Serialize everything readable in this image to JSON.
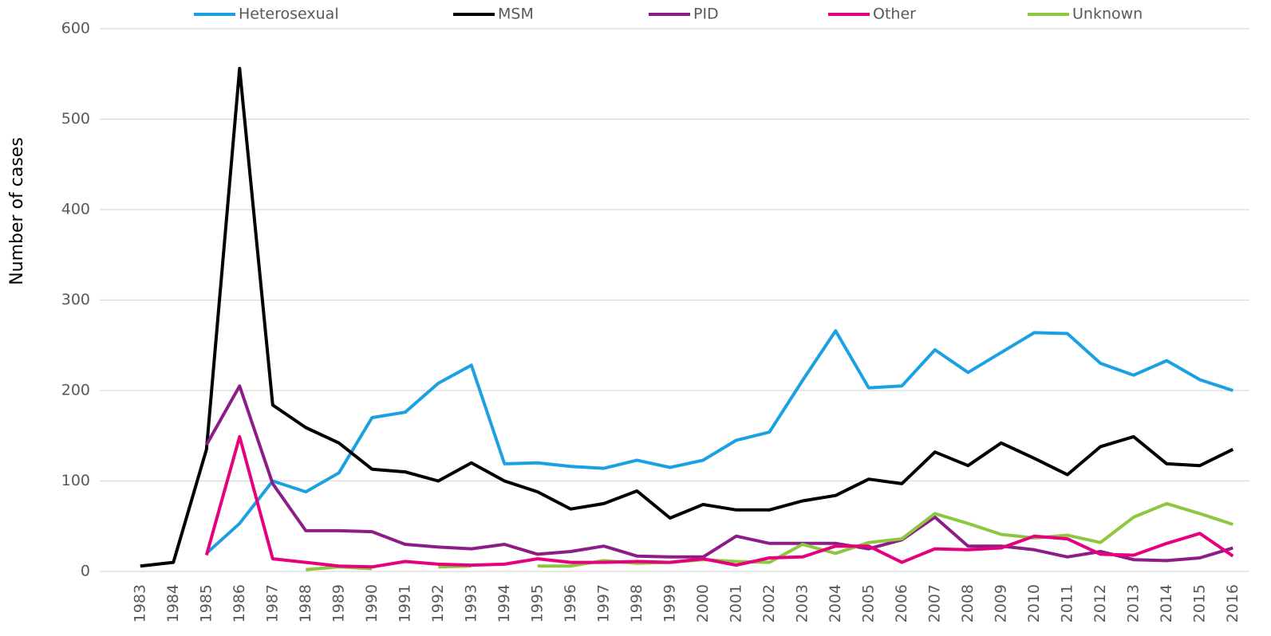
{
  "chart_data": {
    "type": "line",
    "y_label": "Number of cases",
    "categories": [
      "1983",
      "1984",
      "1985",
      "1986",
      "1987",
      "1988",
      "1989",
      "1990",
      "1991",
      "1992",
      "1993",
      "1994",
      "1995",
      "1996",
      "1997",
      "1998",
      "1999",
      "2000",
      "2001",
      "2002",
      "2003",
      "2004",
      "2005",
      "2006",
      "2007",
      "2008",
      "2009",
      "2010",
      "2011",
      "2012",
      "2013",
      "2014",
      "2015",
      "2016"
    ],
    "series": [
      {
        "name": "Heterosexual",
        "color": "#1ba1e2",
        "values": [
          null,
          null,
          20,
          53,
          100,
          88,
          109,
          170,
          176,
          208,
          228,
          119,
          120,
          116,
          114,
          123,
          115,
          123,
          145,
          154,
          211,
          266,
          203,
          205,
          245,
          220,
          242,
          264,
          263,
          230,
          217,
          233,
          212,
          200
        ]
      },
      {
        "name": "MSM",
        "color": "#000000",
        "values": [
          6,
          10,
          135,
          556,
          184,
          159,
          142,
          113,
          110,
          100,
          120,
          100,
          88,
          69,
          75,
          89,
          59,
          74,
          68,
          68,
          78,
          84,
          102,
          97,
          132,
          117,
          142,
          125,
          107,
          138,
          149,
          119,
          117,
          135
        ]
      },
      {
        "name": "PID",
        "color": "#8b1e86",
        "values": [
          null,
          null,
          140,
          205,
          97,
          45,
          45,
          44,
          30,
          27,
          25,
          30,
          19,
          22,
          28,
          17,
          16,
          16,
          39,
          31,
          31,
          31,
          25,
          35,
          60,
          28,
          28,
          24,
          16,
          22,
          13,
          12,
          15,
          26
        ]
      },
      {
        "name": "Other",
        "color": "#e6007e",
        "values": [
          null,
          null,
          18,
          149,
          14,
          10,
          6,
          5,
          11,
          8,
          7,
          8,
          14,
          10,
          10,
          11,
          10,
          14,
          7,
          15,
          16,
          28,
          28,
          10,
          25,
          24,
          26,
          39,
          36,
          19,
          18,
          31,
          42,
          17
        ]
      },
      {
        "name": "Unknown",
        "color": "#8dc63f",
        "values": [
          null,
          null,
          null,
          null,
          null,
          2,
          5,
          3,
          null,
          5,
          6,
          null,
          6,
          6,
          12,
          9,
          10,
          13,
          11,
          10,
          30,
          20,
          32,
          36,
          64,
          53,
          41,
          37,
          40,
          32,
          60,
          75,
          64,
          52
        ]
      }
    ],
    "ylim": [
      0,
      600
    ],
    "yticks": [
      0,
      100,
      200,
      300,
      400,
      500,
      600
    ],
    "grid": true,
    "legend": "top"
  }
}
